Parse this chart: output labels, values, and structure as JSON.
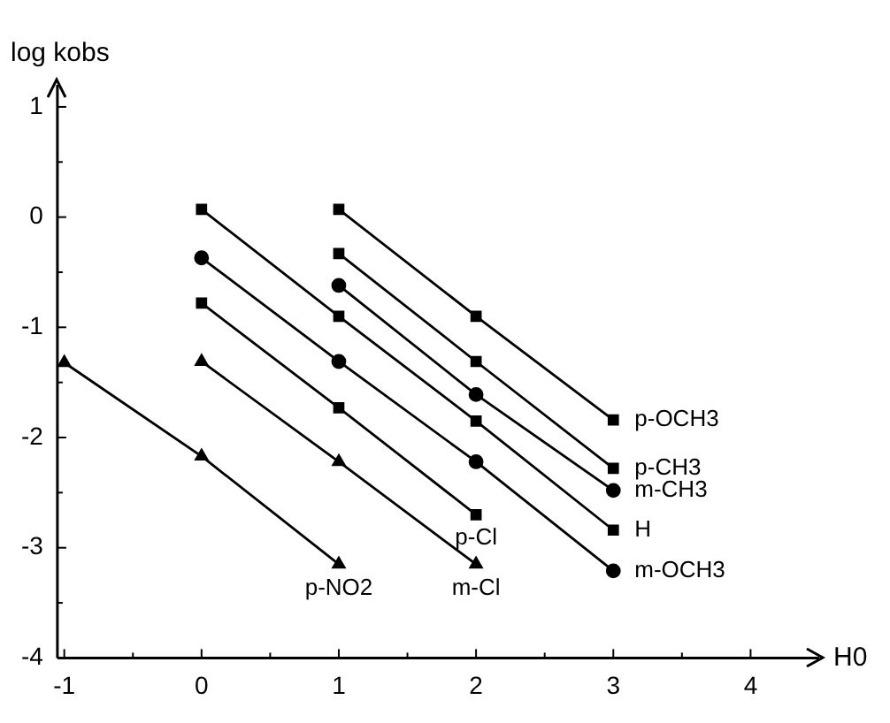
{
  "chart_data": {
    "type": "line",
    "xlabel": "H0",
    "ylabel": "log kobs",
    "xlim": [
      -1.05,
      4.5
    ],
    "ylim": [
      -4,
      1.2
    ],
    "xticks": [
      -1,
      {
        "value": -0.5,
        "label": null
      },
      0,
      {
        "value": 0.5,
        "label": null
      },
      1,
      {
        "value": 1.5,
        "label": null
      },
      2,
      {
        "value": 2.5,
        "label": null
      },
      3,
      {
        "value": 3.5,
        "label": null
      },
      4
    ],
    "yticks": [
      -4,
      {
        "value": -3.5,
        "label": null
      },
      -3,
      {
        "value": -2.5,
        "label": null
      },
      -2,
      {
        "value": -1.5,
        "label": null
      },
      -1,
      {
        "value": -0.5,
        "label": null
      },
      0,
      {
        "value": 0.5,
        "label": null
      },
      1
    ],
    "grid": false,
    "legend": false,
    "series": [
      {
        "name": "p-NO2",
        "color": "#000000",
        "marker": "triangle",
        "x": [
          -1,
          0,
          1
        ],
        "values": [
          -1.32,
          -2.17,
          -3.15
        ]
      },
      {
        "name": "m-Cl",
        "color": "#000000",
        "marker": "triangle",
        "x": [
          0,
          1,
          2
        ],
        "values": [
          -1.31,
          -2.22,
          -3.15
        ]
      },
      {
        "name": "p-Cl",
        "color": "#000000",
        "marker": "square",
        "x": [
          0,
          1,
          2
        ],
        "values": [
          -0.78,
          -1.73,
          -2.7
        ]
      },
      {
        "name": "m-OCH3",
        "color": "#000000",
        "marker": "circle",
        "x": [
          0,
          1,
          2,
          3
        ],
        "values": [
          -0.37,
          -1.31,
          -2.22,
          -3.21
        ]
      },
      {
        "name": "H",
        "color": "#000000",
        "marker": "square",
        "x": [
          0,
          1,
          2,
          3
        ],
        "values": [
          0.07,
          -0.9,
          -1.85,
          -2.84
        ]
      },
      {
        "name": "m-CH3",
        "color": "#000000",
        "marker": "circle",
        "x": [
          1,
          2,
          3
        ],
        "values": [
          -0.62,
          -1.61,
          -2.48
        ]
      },
      {
        "name": "p-CH3",
        "color": "#000000",
        "marker": "square",
        "x": [
          1,
          2,
          3
        ],
        "values": [
          -0.33,
          -1.31,
          -2.28
        ]
      },
      {
        "name": "p-OCH3",
        "color": "#000000",
        "marker": "square",
        "x": [
          1,
          2,
          3
        ],
        "values": [
          0.07,
          -0.9,
          -1.84
        ]
      }
    ]
  }
}
